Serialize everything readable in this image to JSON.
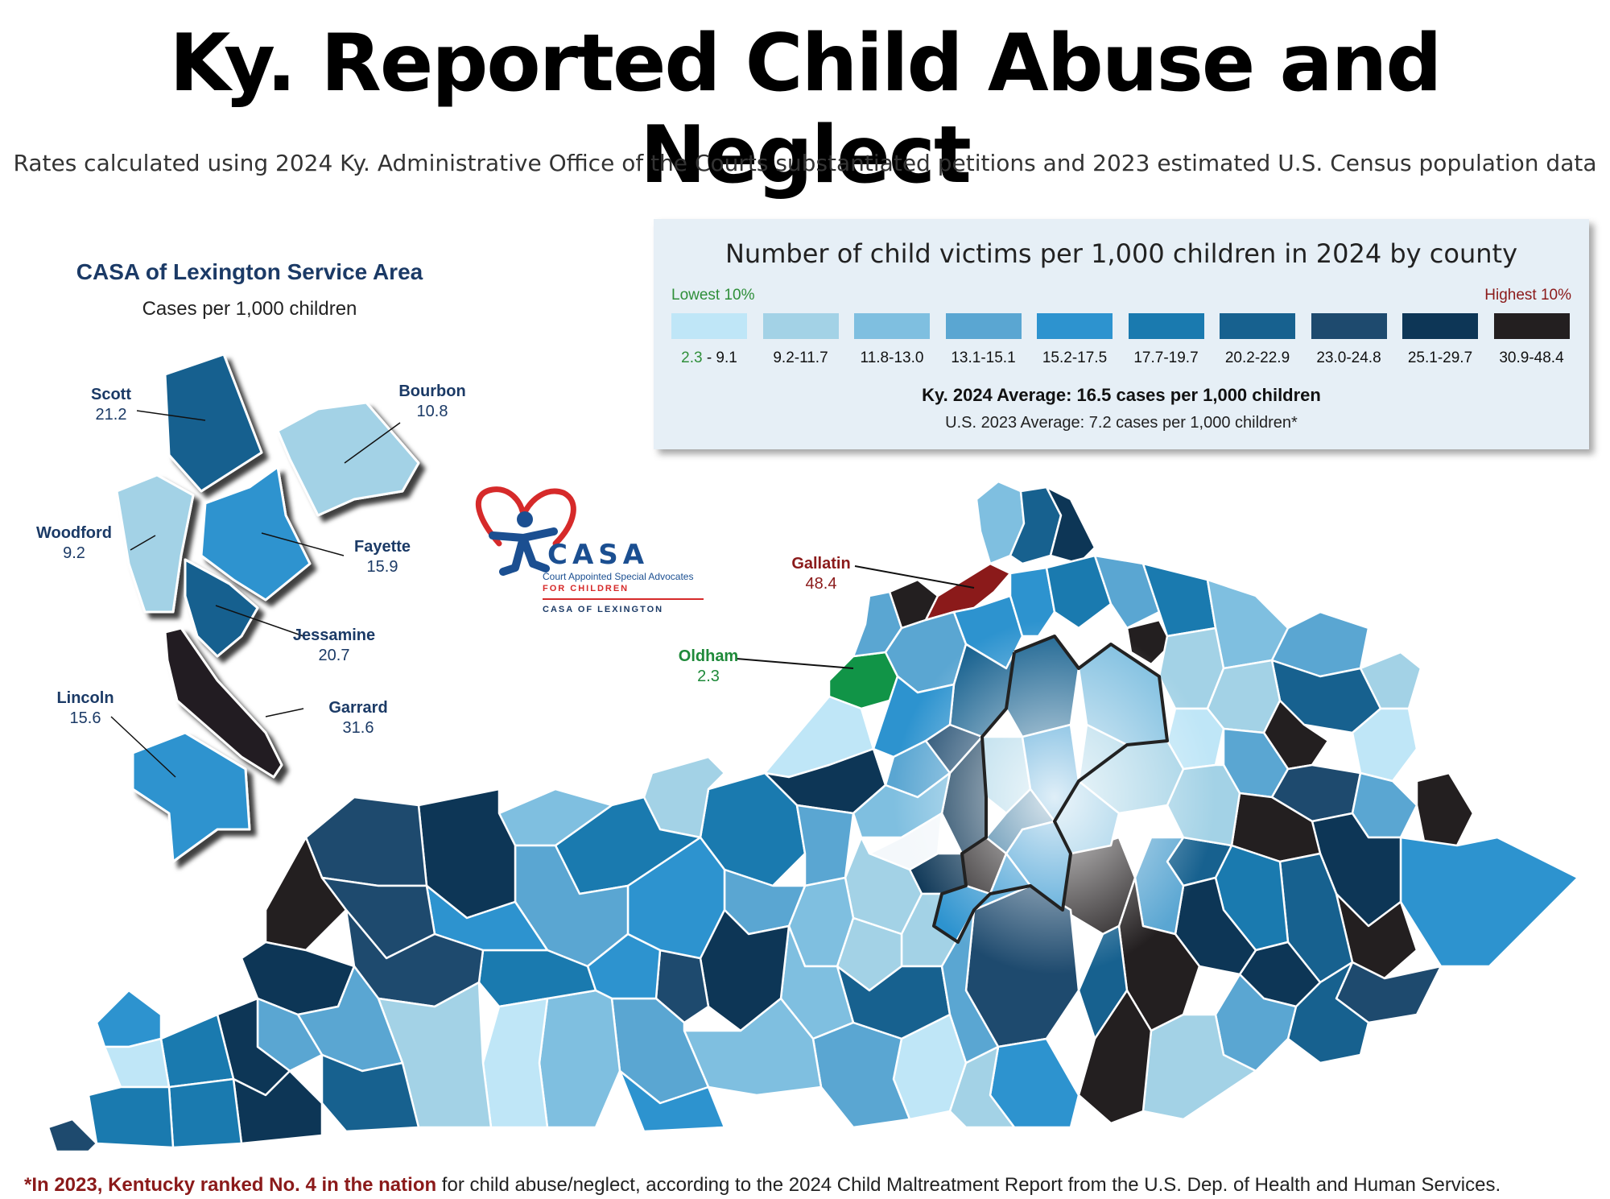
{
  "title": "Ky. Reported Child Abuse and Neglect",
  "subtitle": "Rates calculated using 2024 Ky. Administrative Office of the Courts substantiated petitions and 2023 estimated U.S. Census population data",
  "legend": {
    "heading": "Number of child victims per 1,000 children in 2024 by county",
    "lowest_label": "Lowest 10%",
    "highest_label": "Highest 10%",
    "bins": [
      {
        "low": "2.3",
        "high": " - 9.1",
        "color": "#bfe6f7"
      },
      {
        "label": "9.2-11.7",
        "color": "#a3d2e6"
      },
      {
        "label": "11.8-13.0",
        "color": "#7fbfe0"
      },
      {
        "label": "13.1-15.1",
        "color": "#5aa6d2"
      },
      {
        "label": "15.2-17.5",
        "color": "#2d93cf"
      },
      {
        "label": "17.7-19.7",
        "color": "#1a7aaf"
      },
      {
        "label": "20.2-22.9",
        "color": "#17618f"
      },
      {
        "label": "23.0-24.8",
        "color": "#1e4a6e"
      },
      {
        "label": "25.1-29.7",
        "color": "#0d3656"
      },
      {
        "label": "30.9-48.4",
        "color": "#231f20"
      }
    ],
    "ky_average": "Ky. 2024 Average: 16.5 cases per 1,000 children",
    "us_average": "U.S. 2023 Average: 7.2 cases per 1,000 children*"
  },
  "inset": {
    "title": "CASA of Lexington Service Area",
    "subtitle": "Cases per 1,000 children",
    "counties": [
      {
        "name": "Scott",
        "value": "21.2",
        "color": "#17618f"
      },
      {
        "name": "Bourbon",
        "value": "10.8",
        "color": "#a3d2e6"
      },
      {
        "name": "Woodford",
        "value": "9.2",
        "color": "#a3d2e6"
      },
      {
        "name": "Fayette",
        "value": "15.9",
        "color": "#2d93cf"
      },
      {
        "name": "Jessamine",
        "value": "20.7",
        "color": "#17618f"
      },
      {
        "name": "Lincoln",
        "value": "15.6",
        "color": "#2d93cf"
      },
      {
        "name": "Garrard",
        "value": "31.6",
        "color": "#231f20"
      }
    ]
  },
  "callouts": {
    "gallatin": {
      "name": "Gallatin",
      "value": "48.4",
      "color": "#8b1a1a"
    },
    "oldham": {
      "name": "Oldham",
      "value": "2.3",
      "color": "#119447"
    }
  },
  "logo": {
    "word": "CASA",
    "full_name": "Court Appointed Special Advocates",
    "for_children": "FOR CHILDREN",
    "chapter": "CASA OF LEXINGTON"
  },
  "footnote": {
    "highlight": "*In 2023, Kentucky ranked No. 4 in the nation",
    "rest": " for child abuse/neglect, according to the 2024 Child Maltreatment Report from the U.S. Dep. of Health and Human Services."
  }
}
